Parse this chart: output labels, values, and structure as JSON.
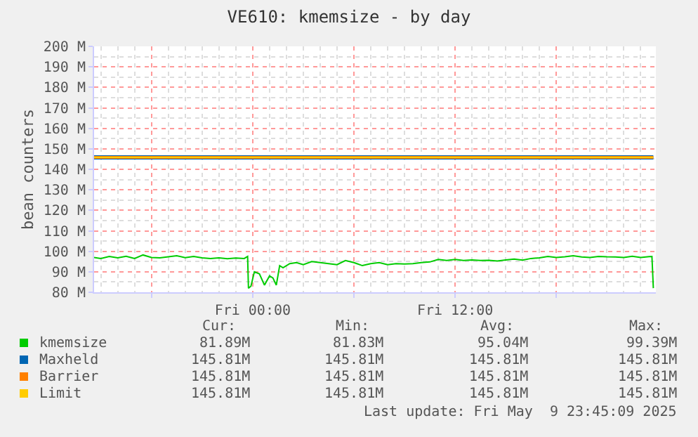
{
  "chart_data": {
    "type": "line",
    "title": "VE610: kmemsize - by day",
    "ylabel": "bean counters",
    "xlim": [
      "2025-05-08T14:36",
      "2025-05-09T23:54"
    ],
    "xticks": [
      {
        "value": "2025-05-08T18:00",
        "label": null
      },
      {
        "value": "2025-05-09T00:00",
        "label": "Fri 00:00"
      },
      {
        "value": "2025-05-09T06:00",
        "label": null
      },
      {
        "value": "2025-05-09T12:00",
        "label": "Fri 12:00"
      },
      {
        "value": "2025-05-09T18:00",
        "label": null
      }
    ],
    "ylim": [
      80,
      200
    ],
    "yticks": [
      {
        "value": 80,
        "label": "80 M"
      },
      {
        "value": 90,
        "label": "90 M"
      },
      {
        "value": 100,
        "label": "100 M"
      },
      {
        "value": 110,
        "label": "110 M"
      },
      {
        "value": 120,
        "label": "120 M"
      },
      {
        "value": 130,
        "label": "130 M"
      },
      {
        "value": 140,
        "label": "140 M"
      },
      {
        "value": 150,
        "label": "150 M"
      },
      {
        "value": 160,
        "label": "160 M"
      },
      {
        "value": 170,
        "label": "170 M"
      },
      {
        "value": 180,
        "label": "180 M"
      },
      {
        "value": 190,
        "label": "190 M"
      },
      {
        "value": 200,
        "label": "200 M"
      }
    ],
    "grid": true,
    "legend": "bottom",
    "marker": "none",
    "line_style": "solid",
    "series": [
      {
        "name": "kmemsize",
        "color": "#00cc00",
        "x": [
          "2025-05-08T14:36",
          "2025-05-08T15:00",
          "2025-05-08T15:30",
          "2025-05-08T16:00",
          "2025-05-08T16:30",
          "2025-05-08T17:00",
          "2025-05-08T17:30",
          "2025-05-08T18:00",
          "2025-05-08T18:30",
          "2025-05-08T19:00",
          "2025-05-08T19:30",
          "2025-05-08T20:00",
          "2025-05-08T20:30",
          "2025-05-08T21:00",
          "2025-05-08T21:30",
          "2025-05-08T22:00",
          "2025-05-08T22:30",
          "2025-05-08T23:00",
          "2025-05-08T23:30",
          "2025-05-08T23:42",
          "2025-05-08T23:45",
          "2025-05-08T23:54",
          "2025-05-09T00:06",
          "2025-05-09T00:24",
          "2025-05-09T00:42",
          "2025-05-09T01:00",
          "2025-05-09T01:12",
          "2025-05-09T01:24",
          "2025-05-09T01:36",
          "2025-05-09T01:48",
          "2025-05-09T02:12",
          "2025-05-09T02:36",
          "2025-05-09T03:00",
          "2025-05-09T03:30",
          "2025-05-09T04:00",
          "2025-05-09T04:30",
          "2025-05-09T05:00",
          "2025-05-09T05:30",
          "2025-05-09T06:00",
          "2025-05-09T06:30",
          "2025-05-09T07:00",
          "2025-05-09T07:30",
          "2025-05-09T08:00",
          "2025-05-09T08:30",
          "2025-05-09T09:00",
          "2025-05-09T09:30",
          "2025-05-09T10:00",
          "2025-05-09T10:30",
          "2025-05-09T11:00",
          "2025-05-09T11:30",
          "2025-05-09T12:00",
          "2025-05-09T12:30",
          "2025-05-09T13:00",
          "2025-05-09T13:30",
          "2025-05-09T14:00",
          "2025-05-09T14:30",
          "2025-05-09T15:00",
          "2025-05-09T15:30",
          "2025-05-09T16:00",
          "2025-05-09T16:30",
          "2025-05-09T17:00",
          "2025-05-09T17:30",
          "2025-05-09T18:00",
          "2025-05-09T18:30",
          "2025-05-09T19:00",
          "2025-05-09T19:30",
          "2025-05-09T20:00",
          "2025-05-09T20:30",
          "2025-05-09T21:00",
          "2025-05-09T21:30",
          "2025-05-09T22:00",
          "2025-05-09T22:30",
          "2025-05-09T23:00",
          "2025-05-09T23:30",
          "2025-05-09T23:40",
          "2025-05-09T23:45"
        ],
        "values": [
          97,
          96.5,
          97.5,
          96.8,
          97.6,
          96.5,
          98.2,
          97,
          96.8,
          97.3,
          97.8,
          96.9,
          97.5,
          96.8,
          96.5,
          96.8,
          96.4,
          96.7,
          96.5,
          97.5,
          82,
          83,
          90,
          89,
          83.5,
          88,
          87,
          83.5,
          93,
          92,
          94,
          94.5,
          93.5,
          95,
          94.5,
          94,
          93.5,
          95.5,
          94.5,
          93,
          94,
          94.5,
          93.5,
          94,
          93.8,
          94,
          94.5,
          94.8,
          96,
          95.5,
          96,
          95.5,
          95.8,
          95.5,
          95.6,
          95.3,
          95.8,
          96.2,
          95.7,
          96.5,
          96.8,
          97.5,
          97,
          97.3,
          97.8,
          97.2,
          97,
          97.5,
          97.3,
          97.2,
          97,
          97.6,
          97,
          97.4,
          97.5,
          82
        ]
      },
      {
        "name": "Maxheld",
        "color": "#0066b3",
        "x": [
          "2025-05-08T14:36",
          "2025-05-09T23:45"
        ],
        "values": [
          145.8,
          145.8
        ]
      },
      {
        "name": "Barrier",
        "color": "#ff8000",
        "x": [
          "2025-05-08T14:36",
          "2025-05-09T23:45"
        ],
        "values": [
          145.8,
          145.8
        ]
      },
      {
        "name": "Limit",
        "color": "#ffcc00",
        "x": [
          "2025-05-08T14:36",
          "2025-05-09T23:45"
        ],
        "values": [
          145.8,
          145.8
        ]
      }
    ],
    "annotations": [
      "Cur:",
      "Min:",
      "Avg:",
      "Max:",
      "81.89M",
      "81.83M",
      "95.04M",
      "99.39M",
      "145.81M",
      "145.81M",
      "145.81M",
      "145.81M",
      "145.81M",
      "145.81M",
      "145.81M",
      "145.81M",
      "145.81M",
      "145.81M",
      "145.81M",
      "145.81M",
      "Last update: Fri May  9 23:45:09 2025"
    ]
  }
}
